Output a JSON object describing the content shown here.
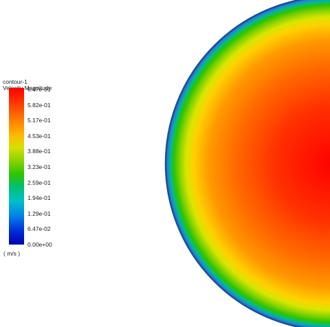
{
  "legend": {
    "title": "contour-1",
    "subtitle": "Velocity Magnitude",
    "units": "( m/s )",
    "levels": [
      "6.47e-01",
      "5.82e-01",
      "5.17e-01",
      "4.53e-01",
      "3.88e-01",
      "3.23e-01",
      "2.59e-01",
      "1.94e-01",
      "1.29e-01",
      "6.47e-02",
      "0.00e+00"
    ]
  },
  "contour": {
    "variable": "velocity-magnitude",
    "min": 0.0,
    "max": 0.647,
    "colors": {
      "max": "#ff0000",
      "high": "#ff8a00",
      "mid": "#f0e000",
      "low": "#2ec400",
      "edge": "#1b4f9e"
    }
  }
}
